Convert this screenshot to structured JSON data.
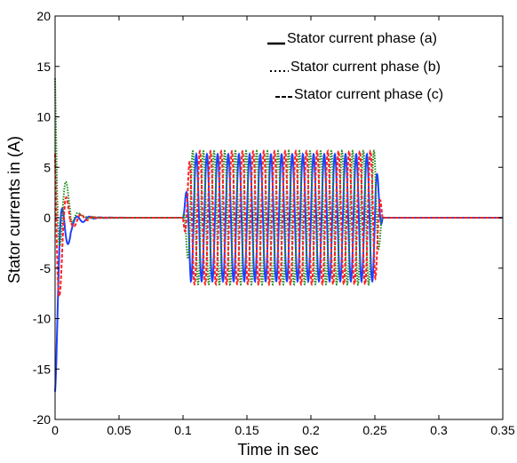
{
  "chart_data": {
    "type": "line",
    "title": "",
    "xlabel": "Time in sec",
    "ylabel": "Stator currents in (A)",
    "xlim": [
      0,
      0.35
    ],
    "ylim": [
      -20,
      20
    ],
    "xticks": [
      0,
      0.05,
      0.1,
      0.15,
      0.2,
      0.25,
      0.3,
      0.35
    ],
    "xtick_labels": [
      "0",
      "0.05",
      "0.1",
      "0.15",
      "0.2",
      "0.25",
      "0.3",
      "0.35"
    ],
    "yticks": [
      -20,
      -15,
      -10,
      -5,
      0,
      5,
      10,
      15,
      20
    ],
    "ytick_labels": [
      "-20",
      "-15",
      "-10",
      "-5",
      "0",
      "5",
      "10",
      "15",
      "20"
    ],
    "grid": false,
    "legend_position": "top-right",
    "legend": [
      {
        "label": "Stator current phase (a)",
        "style": "solid"
      },
      {
        "label": "Stator current phase (b)",
        "style": "dotted"
      },
      {
        "label": "Stator current phase (c)",
        "style": "dashed"
      }
    ],
    "series": [
      {
        "color": "#1f3fff",
        "style": "solid",
        "startup_peaks": [
          2.5,
          -17.5
        ],
        "loaded_amplitude": 6.3,
        "phase_deg": 0
      },
      {
        "color": "#1a8a1a",
        "style": "dotted",
        "startup_peaks": [
          17.5,
          -5.5
        ],
        "loaded_amplitude": 6.6,
        "phase_deg": 120
      },
      {
        "color": "#ff2020",
        "style": "dashed",
        "startup_peaks": [
          10.3,
          -15
        ],
        "loaded_amplitude": 6.6,
        "phase_deg": 240
      }
    ],
    "load_interval": [
      0.1,
      0.25
    ],
    "frequency_hz": 120
  }
}
